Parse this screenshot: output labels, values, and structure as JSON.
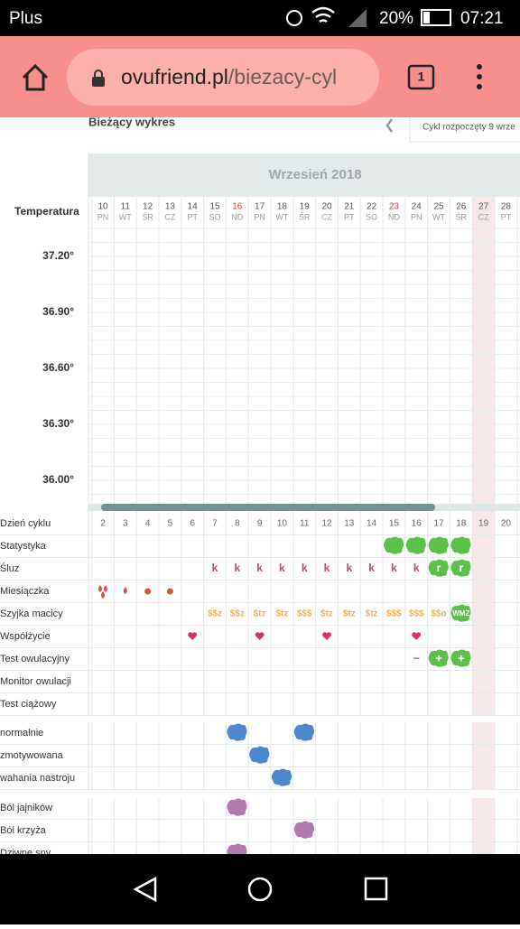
{
  "status_bar": {
    "carrier": "Plus",
    "battery": "20%",
    "time": "07:21"
  },
  "browser": {
    "url_domain": "ovufriend.pl",
    "url_path": "/biezacy-cyl",
    "tab_count": "1"
  },
  "page": {
    "heading": "Bieżący wykres",
    "cycle_start": "Cykl rozpoczęty 9 wrze"
  },
  "calendar": {
    "month": "Wrzesień 2018",
    "temperature_label": "Temperatura",
    "days": [
      {
        "date": "10",
        "weekday": "PN"
      },
      {
        "date": "11",
        "weekday": "WT"
      },
      {
        "date": "12",
        "weekday": "ŚR"
      },
      {
        "date": "13",
        "weekday": "CZ"
      },
      {
        "date": "14",
        "weekday": "PT"
      },
      {
        "date": "15",
        "weekday": "SO"
      },
      {
        "date": "16",
        "weekday": "ND"
      },
      {
        "date": "17",
        "weekday": "PN"
      },
      {
        "date": "18",
        "weekday": "WT"
      },
      {
        "date": "19",
        "weekday": "ŚR"
      },
      {
        "date": "20",
        "weekday": "CZ"
      },
      {
        "date": "21",
        "weekday": "PT"
      },
      {
        "date": "22",
        "weekday": "SO"
      },
      {
        "date": "23",
        "weekday": "ND"
      },
      {
        "date": "24",
        "weekday": "PN"
      },
      {
        "date": "25",
        "weekday": "WT"
      },
      {
        "date": "26",
        "weekday": "ŚR"
      },
      {
        "date": "27",
        "weekday": "CZ"
      },
      {
        "date": "28",
        "weekday": "PT"
      }
    ],
    "temperatures": [
      "37.20°",
      "36.90°",
      "36.60°",
      "36.30°",
      "36.00°"
    ],
    "rows": [
      {
        "label": "Dzień cyklu",
        "cells": [
          "2",
          "3",
          "4",
          "5",
          "6",
          "7",
          "8",
          "9",
          "10",
          "11",
          "12",
          "13",
          "14",
          "15",
          "16",
          "17",
          "18",
          "19",
          "20"
        ]
      },
      {
        "label": "Statystyka",
        "cells": [
          null,
          null,
          null,
          null,
          null,
          null,
          null,
          null,
          null,
          null,
          null,
          null,
          null,
          null,
          null,
          null,
          null,
          null,
          null
        ]
      },
      {
        "label": "Śluz",
        "cells": [
          null,
          null,
          null,
          null,
          null,
          "k",
          "k",
          "k",
          "k",
          "k",
          "k",
          "k",
          "k",
          "k",
          "k",
          "r",
          "r",
          null,
          null
        ]
      },
      {
        "label": "Miesiączka",
        "cells": [
          null,
          null,
          null,
          null,
          null,
          null,
          null,
          null,
          null,
          null,
          null,
          null,
          null,
          null,
          null,
          null,
          null,
          null,
          null
        ]
      },
      {
        "label": "Szyjka macicy",
        "cells": [
          null,
          null,
          null,
          null,
          null,
          "$$z",
          "$$z",
          "$tz",
          "$tz",
          "$$$",
          "$tz",
          "$tz",
          "$tz",
          "$$$",
          "$$$",
          "$$o",
          "WMZ",
          null,
          null
        ]
      },
      {
        "label": "Współżycie",
        "cells": [
          null,
          null,
          null,
          null,
          null,
          null,
          null,
          null,
          null,
          null,
          null,
          null,
          null,
          null,
          null,
          null,
          null,
          null,
          null
        ]
      },
      {
        "label": "Test owulacyjny",
        "cells": [
          null,
          null,
          null,
          null,
          null,
          null,
          null,
          null,
          null,
          null,
          null,
          null,
          null,
          null,
          "−",
          "+",
          "+",
          null,
          null
        ]
      },
      {
        "label": "Monitor owulacji",
        "cells": [
          null,
          null,
          null,
          null,
          null,
          null,
          null,
          null,
          null,
          null,
          null,
          null,
          null,
          null,
          null,
          null,
          null,
          null,
          null
        ]
      },
      {
        "label": "Test ciążowy",
        "cells": [
          null,
          null,
          null,
          null,
          null,
          null,
          null,
          null,
          null,
          null,
          null,
          null,
          null,
          null,
          null,
          null,
          null,
          null,
          null
        ]
      },
      {
        "label": "normalnie",
        "cells": [
          null,
          null,
          null,
          null,
          null,
          null,
          null,
          null,
          null,
          null,
          null,
          null,
          null,
          null,
          null,
          null,
          null,
          null,
          null
        ]
      },
      {
        "label": "zmotywowana",
        "cells": [
          null,
          null,
          null,
          null,
          null,
          null,
          null,
          null,
          null,
          null,
          null,
          null,
          null,
          null,
          null,
          null,
          null,
          null,
          null
        ]
      },
      {
        "label": "wahania nastroju",
        "cells": [
          null,
          null,
          null,
          null,
          null,
          null,
          null,
          null,
          null,
          null,
          null,
          null,
          null,
          null,
          null,
          null,
          null,
          null,
          null
        ]
      },
      {
        "label": "Ból jajników",
        "cells": [
          null,
          null,
          null,
          null,
          null,
          null,
          null,
          null,
          null,
          null,
          null,
          null,
          null,
          null,
          null,
          null,
          null,
          null,
          null
        ]
      },
      {
        "label": "Ból krzyża",
        "cells": [
          null,
          null,
          null,
          null,
          null,
          null,
          null,
          null,
          null,
          null,
          null,
          null,
          null,
          null,
          null,
          null,
          null,
          null,
          null
        ]
      },
      {
        "label": "Dziwne sny",
        "cells": [
          null,
          null,
          null,
          null,
          null,
          null,
          null,
          null,
          null,
          null,
          null,
          null,
          null,
          null,
          null,
          null,
          null,
          null,
          null
        ]
      }
    ]
  }
}
